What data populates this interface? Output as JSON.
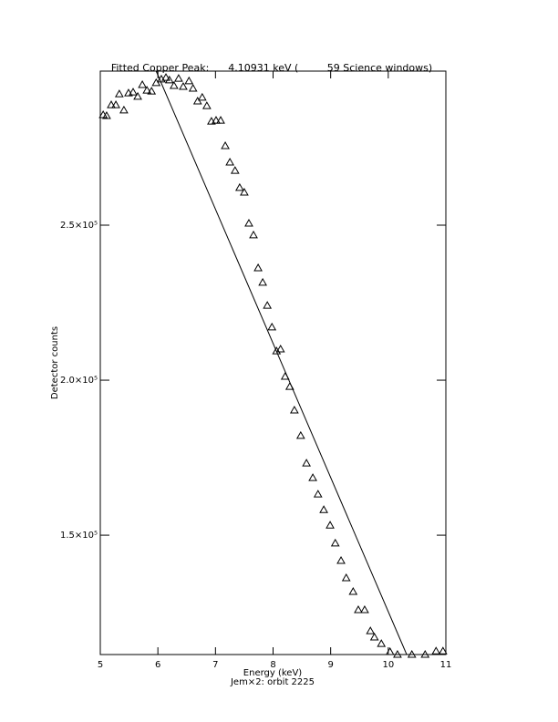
{
  "chart_data": {
    "type": "scatter",
    "title": "Fitted Copper Peak:      4.10931 keV (         59 Science windows)",
    "x_label": "Energy (keV)",
    "subtitle": "Jem×2: orbit 2225",
    "y_label": "Detector counts",
    "xlim": [
      5,
      11
    ],
    "xticks": [
      5,
      6,
      7,
      8,
      9,
      10,
      11
    ],
    "ylim": [
      111500,
      299700
    ],
    "yticks": [
      {
        "value": 150000,
        "label": "1.5×10⁵"
      },
      {
        "value": 200000,
        "label": "2.0×10⁵"
      },
      {
        "value": 250000,
        "label": "2.5×10⁵"
      }
    ],
    "series": [
      {
        "name": "data",
        "color": "#000000",
        "marker": "triangle",
        "x": [
          5.05,
          5.11,
          5.19,
          5.27,
          5.33,
          5.41,
          5.49,
          5.57,
          5.65,
          5.73,
          5.81,
          5.89,
          5.97,
          6.06,
          6.14,
          6.2,
          6.28,
          6.36,
          6.44,
          6.54,
          6.61,
          6.69,
          6.77,
          6.85,
          6.93,
          7.01,
          7.09,
          7.17,
          7.25,
          7.34,
          7.42,
          7.5,
          7.58,
          7.66,
          7.74,
          7.82,
          7.9,
          7.98,
          8.06,
          8.13,
          8.21,
          8.29,
          8.37,
          8.48,
          8.58,
          8.69,
          8.78,
          8.88,
          8.99,
          9.08,
          9.18,
          9.27,
          9.39,
          9.48,
          9.59,
          9.69,
          9.76,
          9.88,
          10.03,
          10.16,
          10.41,
          10.64,
          10.83,
          10.95
        ],
        "values": [
          285600,
          285300,
          288800,
          288800,
          292300,
          287100,
          292600,
          292900,
          291500,
          295300,
          293500,
          293200,
          295900,
          297100,
          297600,
          296800,
          295000,
          297300,
          294700,
          296500,
          294100,
          290000,
          291200,
          288500,
          283500,
          283800,
          283800,
          275600,
          270300,
          267600,
          262100,
          260600,
          250600,
          246800,
          236200,
          231500,
          224100,
          217100,
          209400,
          210000,
          201200,
          197900,
          190300,
          182100,
          173200,
          168500,
          163200,
          158200,
          153200,
          147400,
          141800,
          136200,
          131800,
          125900,
          125900,
          119100,
          117100,
          115000,
          112400,
          111500,
          111500,
          111500,
          112600,
          112600
        ]
      },
      {
        "name": "fit",
        "color": "#000000",
        "marker": "line",
        "x": [
          5.97,
          10.32
        ],
        "values": [
          299700,
          111500
        ]
      }
    ]
  }
}
